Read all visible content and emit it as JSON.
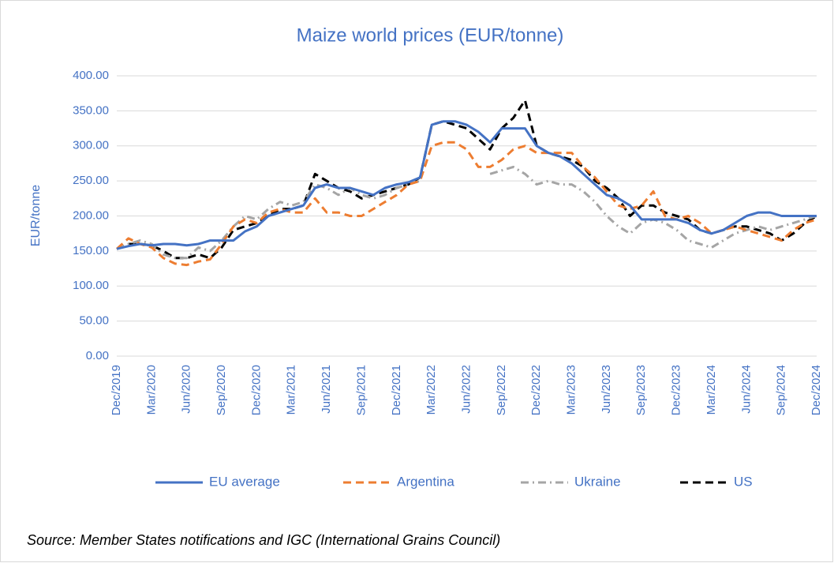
{
  "chart_data": {
    "type": "line",
    "title": "Maize world prices (EUR/tonne)",
    "y_label": "EUR/tonne",
    "source": "Source: Member States notifications and IGC (International Grains Council)",
    "categories": [
      "Dec/2019",
      null,
      null,
      "Mar/2020",
      null,
      null,
      "Jun/2020",
      null,
      null,
      "Sep/2020",
      null,
      null,
      "Dec/2020",
      null,
      null,
      "Mar/2021",
      null,
      null,
      "Jun/2021",
      null,
      null,
      "Sep/2021",
      null,
      null,
      "Dec/2021",
      null,
      null,
      "Mar/2022",
      null,
      null,
      "Jun/2022",
      null,
      null,
      "Sep/2022",
      null,
      null,
      "Dec/2022",
      null,
      null,
      "Mar/2023",
      null,
      null,
      "Jun/2023",
      null,
      null,
      "Sep/2023",
      null,
      null,
      "Dec/2023",
      null,
      null,
      "Mar/2024",
      null,
      null,
      "Jun/2024",
      null,
      null,
      "Sep/2024",
      null,
      null,
      "Dec/2024"
    ],
    "series": [
      {
        "name": "EU average",
        "color": "#4472c4",
        "dash": "solid",
        "values": [
          153,
          157,
          160,
          158,
          160,
          160,
          158,
          160,
          165,
          165,
          165,
          178,
          185,
          200,
          205,
          210,
          215,
          240,
          245,
          240,
          240,
          235,
          230,
          240,
          245,
          248,
          255,
          330,
          335,
          335,
          330,
          320,
          305,
          325,
          325,
          325,
          300,
          290,
          285,
          275,
          260,
          245,
          230,
          225,
          215,
          195,
          195,
          195,
          195,
          190,
          180,
          175,
          180,
          190,
          200,
          205,
          205,
          200,
          200,
          200,
          200
        ]
      },
      {
        "name": "Argentina",
        "color": "#ed7d31",
        "dash": "dashed",
        "values": [
          153,
          168,
          160,
          155,
          140,
          132,
          130,
          135,
          138,
          160,
          185,
          195,
          190,
          205,
          210,
          205,
          205,
          225,
          205,
          205,
          200,
          200,
          210,
          220,
          230,
          245,
          250,
          300,
          305,
          305,
          295,
          270,
          270,
          280,
          295,
          300,
          290,
          290,
          290,
          290,
          270,
          255,
          235,
          215,
          210,
          215,
          235,
          200,
          195,
          200,
          190,
          175,
          180,
          185,
          180,
          175,
          170,
          165,
          180,
          190,
          195
        ]
      },
      {
        "name": "Ukraine",
        "color": "#a5a5a5",
        "dash": "dashdot",
        "values": [
          153,
          160,
          165,
          160,
          145,
          140,
          140,
          155,
          150,
          165,
          185,
          200,
          195,
          210,
          220,
          215,
          220,
          245,
          240,
          230,
          240,
          230,
          225,
          230,
          240,
          245,
          250,
          null,
          null,
          null,
          null,
          null,
          260,
          265,
          270,
          260,
          245,
          250,
          245,
          245,
          235,
          220,
          200,
          185,
          175,
          190,
          195,
          190,
          180,
          165,
          160,
          155,
          165,
          175,
          180,
          185,
          180,
          185,
          190,
          195,
          200
        ]
      },
      {
        "name": "US",
        "color": "#000000",
        "dash": "dashed",
        "values": [
          153,
          160,
          160,
          158,
          150,
          140,
          140,
          145,
          140,
          155,
          180,
          185,
          190,
          200,
          210,
          210,
          215,
          260,
          250,
          240,
          235,
          225,
          230,
          235,
          240,
          245,
          255,
          330,
          335,
          330,
          325,
          310,
          295,
          325,
          340,
          365,
          300,
          290,
          285,
          280,
          270,
          250,
          240,
          225,
          200,
          215,
          215,
          205,
          200,
          195,
          180,
          175,
          180,
          185,
          185,
          180,
          175,
          165,
          175,
          190,
          200
        ]
      }
    ],
    "ylim": [
      0,
      400
    ],
    "yticks": [
      {
        "value": 0,
        "label": "0.00"
      },
      {
        "value": 50,
        "label": "50.00"
      },
      {
        "value": 100,
        "label": "100.00"
      },
      {
        "value": 150,
        "label": "150.00"
      },
      {
        "value": 200,
        "label": "200.00"
      },
      {
        "value": 250,
        "label": "250.00"
      },
      {
        "value": 300,
        "label": "300.00"
      },
      {
        "value": 350,
        "label": "350.00"
      },
      {
        "value": 400,
        "label": "400.00"
      }
    ],
    "grid": true
  }
}
